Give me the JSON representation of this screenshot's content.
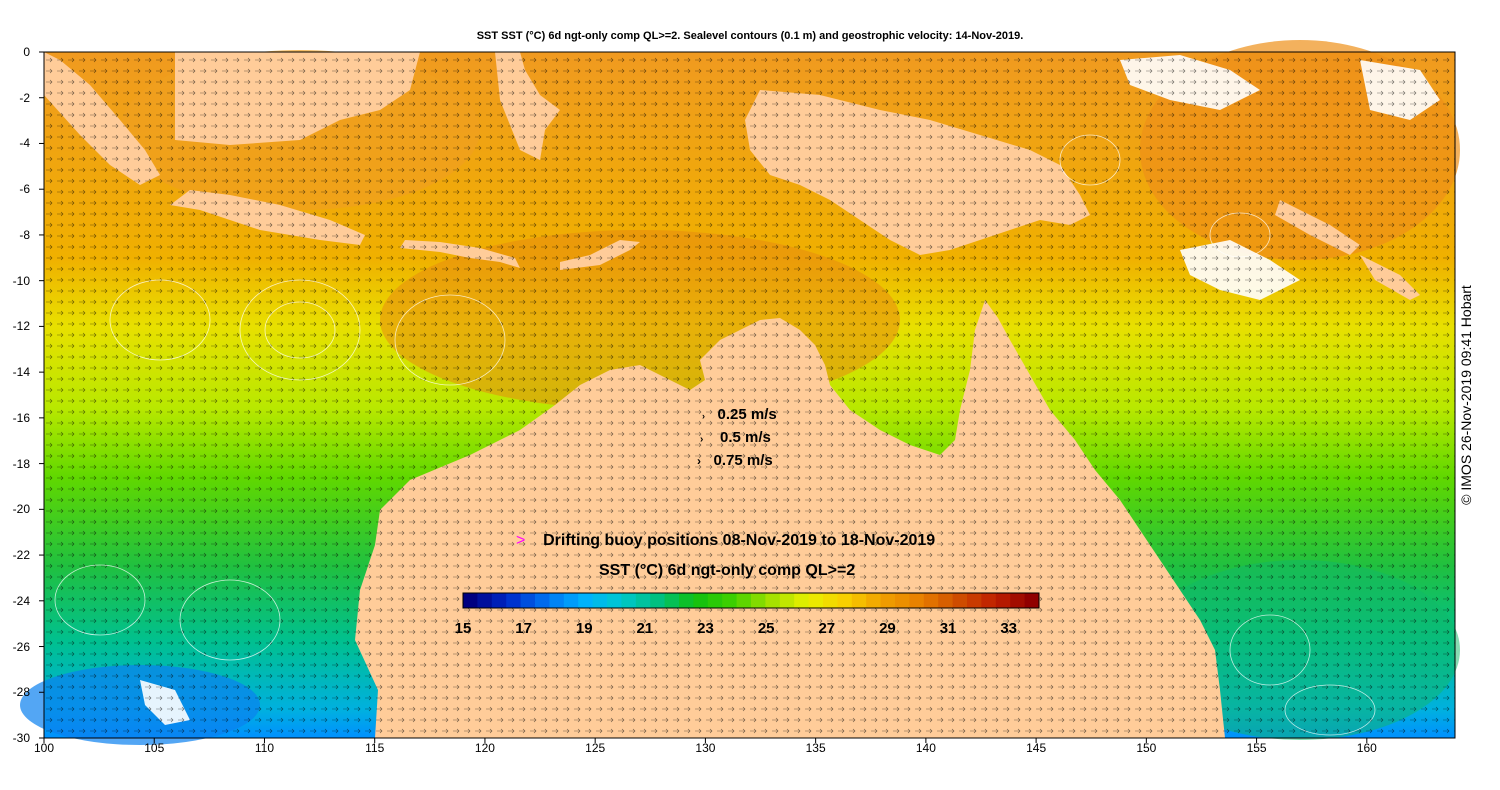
{
  "title": "SST SST (°C) 6d ngt-only comp QL>=2. Sealevel contours (0.1 m) and geostrophic velocity: 14-Nov-2019.",
  "credit": "© IMOS 26-Nov-2019 09:41 Hobart",
  "velocity_legend": [
    {
      "label": "0.25 m/s"
    },
    {
      "label": "0.5 m/s"
    },
    {
      "label": "0.75 m/s"
    }
  ],
  "buoy_legend": {
    "marker": ">",
    "label": "Drifting buoy positions 08-Nov-2019 to 18-Nov-2019",
    "color": "#ff00ff"
  },
  "colorbar": {
    "label": "SST (°C) 6d ngt-only comp QL>=2",
    "min": 15,
    "max": 34,
    "ticks": [
      "15",
      "17",
      "19",
      "21",
      "23",
      "25",
      "27",
      "29",
      "31",
      "33"
    ],
    "colors": [
      "#000080",
      "#0028c8",
      "#0070f0",
      "#00b0ff",
      "#00c8d0",
      "#00c080",
      "#10c010",
      "#40d000",
      "#a0e000",
      "#e8f000",
      "#f8d000",
      "#f0a000",
      "#e88000",
      "#d05000",
      "#c02000",
      "#900000"
    ]
  },
  "x_axis": {
    "ticks": [
      "100",
      "105",
      "110",
      "115",
      "120",
      "125",
      "130",
      "135",
      "140",
      "145",
      "150",
      "155",
      "160"
    ]
  },
  "y_axis": {
    "ticks": [
      "0",
      "-2",
      "-4",
      "-6",
      "-8",
      "-10",
      "-12",
      "-14",
      "-16",
      "-18",
      "-20",
      "-22",
      "-24",
      "-26",
      "-28",
      "-30"
    ]
  },
  "map": {
    "lon_range": [
      100,
      164
    ],
    "lat_range": [
      -30,
      0
    ],
    "land_color": "#ffcc99",
    "missing_color": "#ffffff"
  }
}
